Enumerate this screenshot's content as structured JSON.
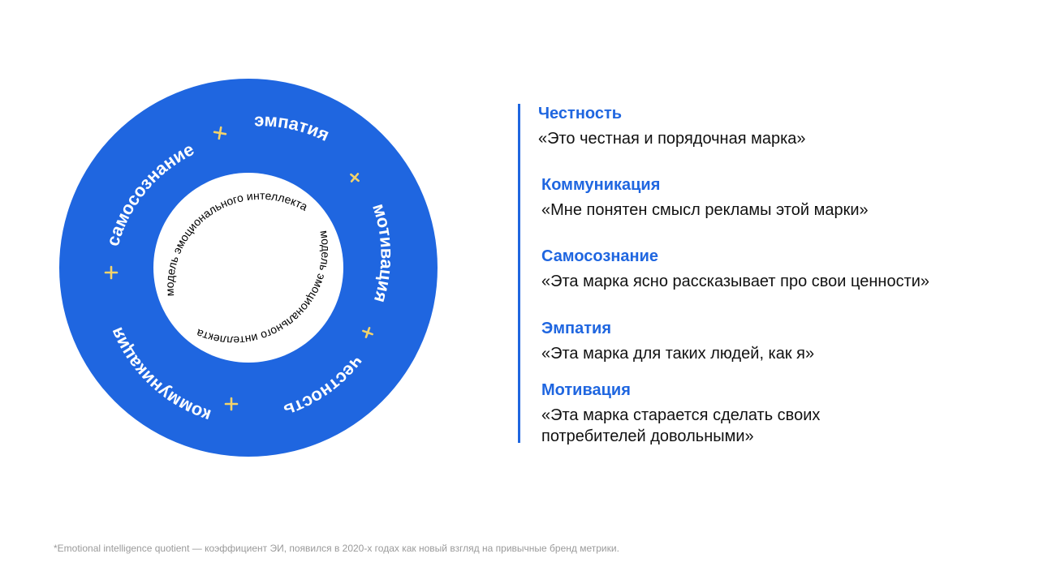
{
  "diagram": {
    "outer_labels": [
      "эмпатия",
      "мотивация",
      "честность",
      "коммуникация",
      "самосознание"
    ],
    "inner_label": "модель эмоционального интеллекта",
    "colors": {
      "ring": "#1f66e0",
      "outer_text": "#ffffff",
      "inner_text": "#000000",
      "accent_plus": "#f3d36b"
    }
  },
  "legend": {
    "items": [
      {
        "title": "Честность",
        "text": "«Это честная и порядочная марка»"
      },
      {
        "title": "Коммуникация",
        "text": "«Мне понятен смысл рекламы этой марки»"
      },
      {
        "title": "Самосознание",
        "text": "«Эта марка ясно рассказывает про свои ценности»"
      },
      {
        "title": "Эмпатия",
        "text": "«Эта марка для таких людей, как я»"
      },
      {
        "title": "Мотивация",
        "text": "«Эта марка старается сделать своих потребителей довольными»"
      }
    ]
  },
  "footnote": "*Emotional intelligence quotient — коэффициент ЭИ, появился в 2020-х годах как новый взгляд на привычные бренд метрики."
}
